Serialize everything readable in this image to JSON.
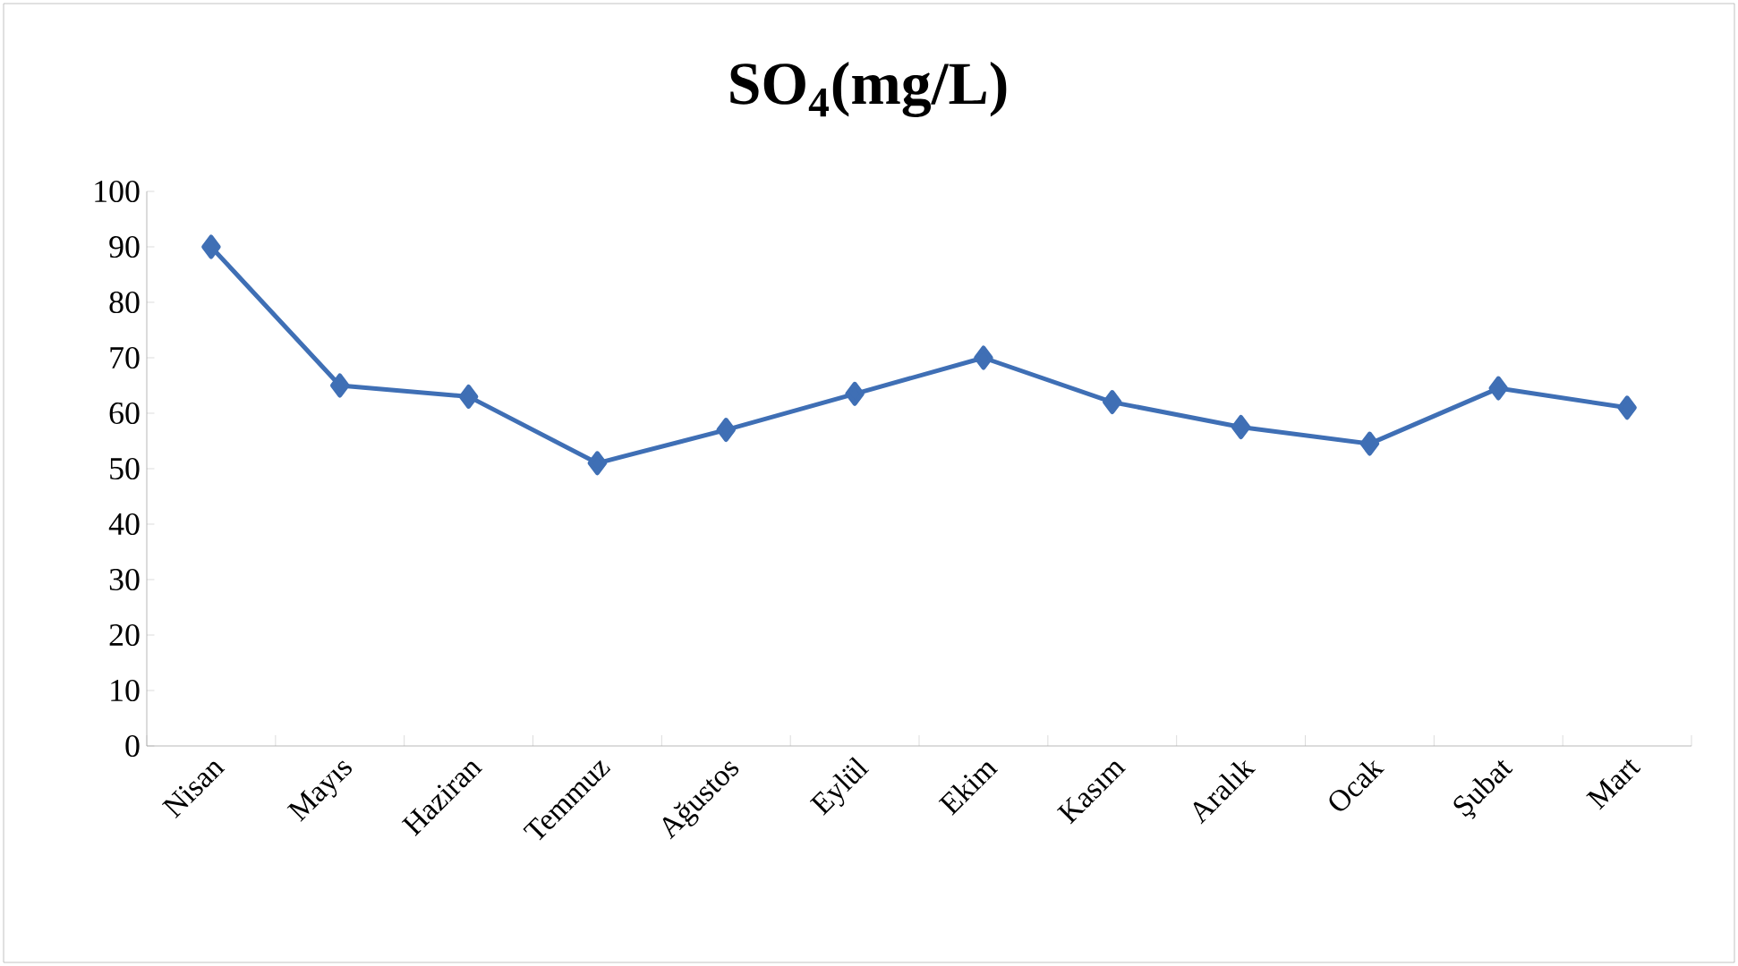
{
  "chart_data": {
    "type": "line",
    "title": "SO$_{4}$(mg/L)",
    "categories": [
      "Nisan",
      "Mayıs",
      "Haziran",
      "Temmuz",
      "Ağustos",
      "Eylül",
      "Ekim",
      "Kasım",
      "Aralık",
      "Ocak",
      "Şubat",
      "Mart"
    ],
    "series": [
      {
        "color": "#3f6fb5",
        "values": [
          90,
          65,
          63,
          51,
          57,
          63.5,
          70,
          62,
          57.5,
          54.5,
          64.5,
          61
        ]
      }
    ],
    "ylim": [
      0,
      100
    ],
    "yticks": [
      0,
      10,
      20,
      30,
      40,
      50,
      60,
      70,
      80,
      90,
      100
    ],
    "grid": false,
    "marker": "diamond",
    "line_style": "solid"
  }
}
